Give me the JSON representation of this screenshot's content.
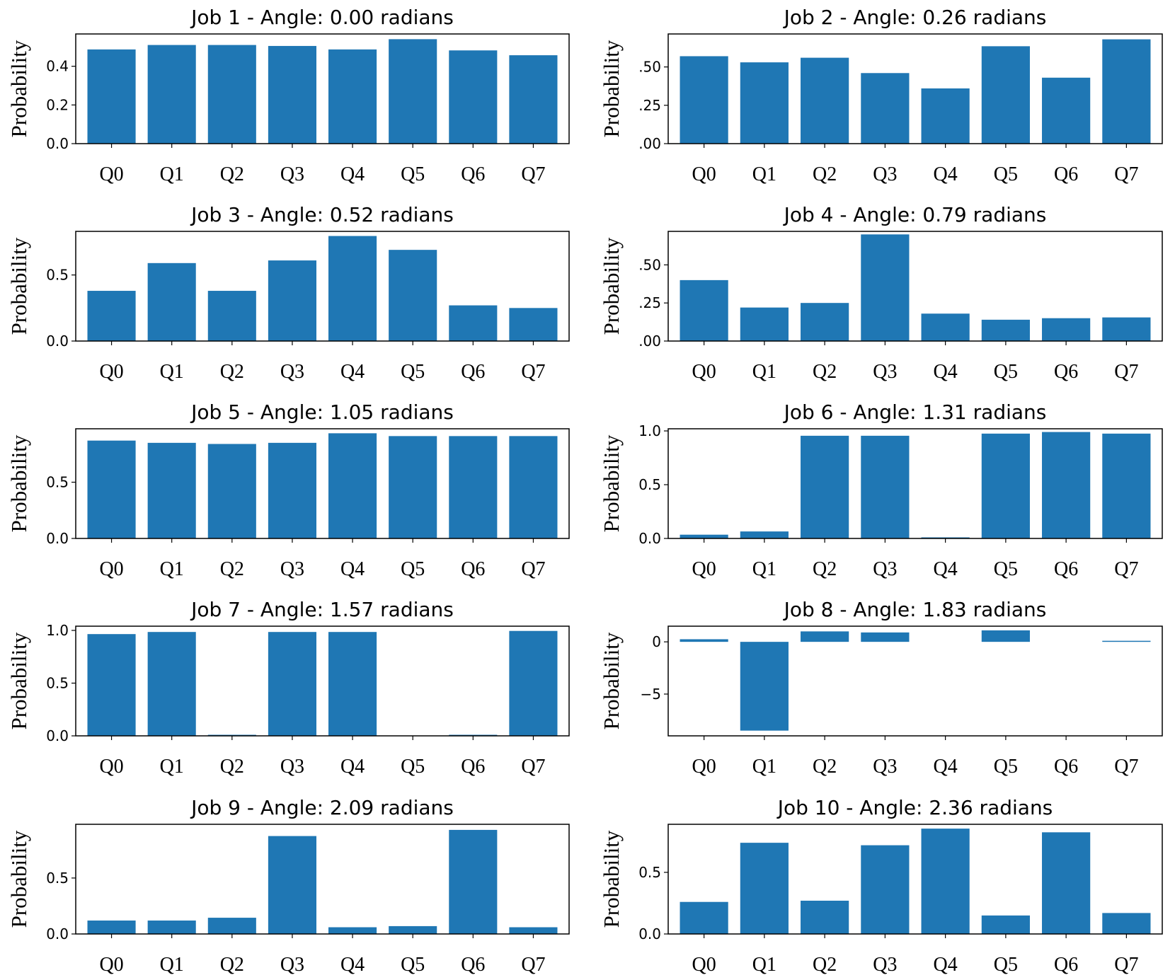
{
  "chart_data": [
    {
      "type": "bar",
      "title": "Job 1 - Angle: 0.00 radians",
      "ylabel": "Probability",
      "categories": [
        "Q0",
        "Q1",
        "Q2",
        "Q3",
        "Q4",
        "Q5",
        "Q6",
        "Q7"
      ],
      "values": [
        0.487,
        0.51,
        0.51,
        0.505,
        0.487,
        0.54,
        0.482,
        0.457
      ],
      "ylim": [
        0,
        0.567
      ],
      "yticks": [
        0.0,
        0.2,
        0.4
      ],
      "ytick_labels": [
        "0.0",
        "0.2",
        "0.4"
      ]
    },
    {
      "type": "bar",
      "title": "Job 2 - Angle: 0.26 radians",
      "ylabel": "Probability",
      "categories": [
        "Q0",
        "Q1",
        "Q2",
        "Q3",
        "Q4",
        "Q5",
        "Q6",
        "Q7"
      ],
      "values": [
        0.57,
        0.53,
        0.56,
        0.46,
        0.36,
        0.635,
        0.43,
        0.68
      ],
      "ylim": [
        0,
        0.715
      ],
      "yticks": [
        0.0,
        0.25,
        0.5
      ],
      "ytick_labels": [
        ".00",
        ".25",
        ".50"
      ]
    },
    {
      "type": "bar",
      "title": "Job 3 - Angle: 0.52 radians",
      "ylabel": "Probability",
      "categories": [
        "Q0",
        "Q1",
        "Q2",
        "Q3",
        "Q4",
        "Q5",
        "Q6",
        "Q7"
      ],
      "values": [
        0.38,
        0.59,
        0.38,
        0.61,
        0.795,
        0.69,
        0.27,
        0.25
      ],
      "ylim": [
        0,
        0.83
      ],
      "yticks": [
        0.0,
        0.5
      ],
      "ytick_labels": [
        "0.0",
        "0.5"
      ]
    },
    {
      "type": "bar",
      "title": "Job 4 - Angle: 0.79 radians",
      "ylabel": "Probability",
      "categories": [
        "Q0",
        "Q1",
        "Q2",
        "Q3",
        "Q4",
        "Q5",
        "Q6",
        "Q7"
      ],
      "values": [
        0.4,
        0.22,
        0.25,
        0.7,
        0.18,
        0.14,
        0.15,
        0.155
      ],
      "ylim": [
        0,
        0.72
      ],
      "yticks": [
        0.0,
        0.25,
        0.5
      ],
      "ytick_labels": [
        ".00",
        ".25",
        ".50"
      ]
    },
    {
      "type": "bar",
      "title": "Job 5 - Angle: 1.05 radians",
      "ylabel": "Probability",
      "categories": [
        "Q0",
        "Q1",
        "Q2",
        "Q3",
        "Q4",
        "Q5",
        "Q6",
        "Q7"
      ],
      "values": [
        0.87,
        0.85,
        0.84,
        0.85,
        0.935,
        0.91,
        0.91,
        0.91
      ],
      "ylim": [
        0,
        0.975
      ],
      "yticks": [
        0.0,
        0.5
      ],
      "ytick_labels": [
        "0.0",
        "0.5"
      ]
    },
    {
      "type": "bar",
      "title": "Job 6 - Angle: 1.31 radians",
      "ylabel": "Probability",
      "categories": [
        "Q0",
        "Q1",
        "Q2",
        "Q3",
        "Q4",
        "Q5",
        "Q6",
        "Q7"
      ],
      "values": [
        0.035,
        0.065,
        0.955,
        0.955,
        0.01,
        0.975,
        0.99,
        0.975
      ],
      "ylim": [
        0,
        1.02
      ],
      "yticks": [
        0.0,
        0.5,
        1.0
      ],
      "ytick_labels": [
        "0.0",
        "0.5",
        "1.0"
      ]
    },
    {
      "type": "bar",
      "title": "Job 7 - Angle: 1.57 radians",
      "ylabel": "Probability",
      "categories": [
        "Q0",
        "Q1",
        "Q2",
        "Q3",
        "Q4",
        "Q5",
        "Q6",
        "Q7"
      ],
      "values": [
        0.965,
        0.985,
        0.01,
        0.985,
        0.985,
        0.0,
        0.01,
        0.995
      ],
      "ylim": [
        0,
        1.04
      ],
      "yticks": [
        0.0,
        0.5,
        1.0
      ],
      "ytick_labels": [
        "0.0",
        "0.5",
        "1.0"
      ]
    },
    {
      "type": "bar",
      "title": "Job 8 - Angle: 1.83 radians",
      "ylabel": "Probability",
      "categories": [
        "Q0",
        "Q1",
        "Q2",
        "Q3",
        "Q4",
        "Q5",
        "Q6",
        "Q7"
      ],
      "values": [
        0.25,
        -8.5,
        1.0,
        0.9,
        0.0,
        1.1,
        0.0,
        0.1
      ],
      "ylim": [
        -9.0,
        1.5
      ],
      "yticks": [
        -5,
        0
      ],
      "ytick_labels": [
        "−5",
        "0"
      ]
    },
    {
      "type": "bar",
      "title": "Job 9 - Angle: 2.09 radians",
      "ylabel": "Probability",
      "categories": [
        "Q0",
        "Q1",
        "Q2",
        "Q3",
        "Q4",
        "Q5",
        "Q6",
        "Q7"
      ],
      "values": [
        0.12,
        0.12,
        0.145,
        0.875,
        0.06,
        0.07,
        0.93,
        0.06
      ],
      "ylim": [
        0,
        0.98
      ],
      "yticks": [
        0.0,
        0.5
      ],
      "ytick_labels": [
        "0.0",
        "0.5"
      ]
    },
    {
      "type": "bar",
      "title": "Job 10 - Angle: 2.36 radians",
      "ylabel": "Probability",
      "categories": [
        "Q0",
        "Q1",
        "Q2",
        "Q3",
        "Q4",
        "Q5",
        "Q6",
        "Q7"
      ],
      "values": [
        0.26,
        0.74,
        0.27,
        0.72,
        0.855,
        0.15,
        0.825,
        0.17
      ],
      "ylim": [
        0,
        0.89
      ],
      "yticks": [
        0.0,
        0.5
      ],
      "ytick_labels": [
        "0.0",
        "0.5"
      ]
    }
  ]
}
